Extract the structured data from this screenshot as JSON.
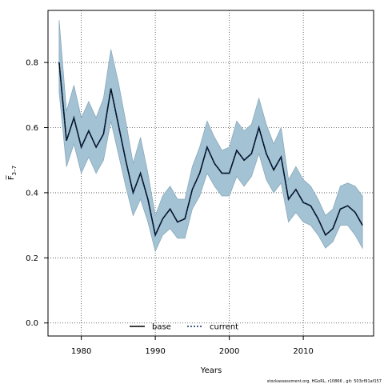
{
  "chart_data": {
    "type": "area",
    "xlabel": "Years",
    "ylabel": "F̅",
    "ylabel_sub": "3–7",
    "xlim": [
      1975.5,
      2019.5
    ],
    "ylim": [
      -0.04,
      0.96
    ],
    "x_ticks": [
      1980,
      1990,
      2000,
      2010
    ],
    "y_ticks": [
      0.0,
      0.2,
      0.4,
      0.6,
      0.8
    ],
    "grid": true,
    "legend_position": "bottom-center",
    "legend": [
      {
        "name": "base",
        "style": "solid",
        "color": "#000000"
      },
      {
        "name": "current",
        "style": "dashed",
        "color": "#0b2a5c"
      }
    ],
    "band_color": "#a3c2d4",
    "x": [
      1977,
      1978,
      1979,
      1980,
      1981,
      1982,
      1983,
      1984,
      1985,
      1986,
      1987,
      1988,
      1989,
      1990,
      1991,
      1992,
      1993,
      1994,
      1995,
      1996,
      1997,
      1998,
      1999,
      2000,
      2001,
      2002,
      2003,
      2004,
      2005,
      2006,
      2007,
      2008,
      2009,
      2010,
      2011,
      2012,
      2013,
      2014,
      2015,
      2016,
      2017,
      2018
    ],
    "series": [
      {
        "name": "base",
        "values": [
          0.8,
          0.56,
          0.63,
          0.54,
          0.59,
          0.54,
          0.58,
          0.72,
          0.61,
          0.5,
          0.4,
          0.46,
          0.38,
          0.27,
          0.32,
          0.35,
          0.31,
          0.32,
          0.41,
          0.46,
          0.54,
          0.49,
          0.46,
          0.46,
          0.53,
          0.5,
          0.52,
          0.6,
          0.52,
          0.47,
          0.51,
          0.38,
          0.41,
          0.37,
          0.36,
          0.32,
          0.27,
          0.29,
          0.35,
          0.36,
          0.34,
          0.3
        ]
      },
      {
        "name": "current",
        "values": [
          0.8,
          0.56,
          0.63,
          0.54,
          0.59,
          0.54,
          0.58,
          0.72,
          0.61,
          0.5,
          0.4,
          0.46,
          0.38,
          0.27,
          0.32,
          0.35,
          0.31,
          0.32,
          0.41,
          0.46,
          0.54,
          0.49,
          0.46,
          0.46,
          0.53,
          0.5,
          0.52,
          0.6,
          0.52,
          0.47,
          0.51,
          0.38,
          0.41,
          0.37,
          0.36,
          0.32,
          0.27,
          0.29,
          0.35,
          0.36,
          0.34,
          0.3
        ]
      }
    ],
    "band_upper": [
      0.93,
      0.65,
      0.73,
      0.63,
      0.68,
      0.63,
      0.69,
      0.84,
      0.74,
      0.62,
      0.49,
      0.57,
      0.46,
      0.33,
      0.39,
      0.42,
      0.38,
      0.38,
      0.48,
      0.54,
      0.62,
      0.57,
      0.53,
      0.54,
      0.62,
      0.59,
      0.61,
      0.69,
      0.61,
      0.55,
      0.6,
      0.44,
      0.48,
      0.44,
      0.42,
      0.38,
      0.33,
      0.35,
      0.42,
      0.43,
      0.42,
      0.39
    ],
    "band_lower": [
      0.71,
      0.48,
      0.55,
      0.46,
      0.51,
      0.46,
      0.5,
      0.62,
      0.52,
      0.42,
      0.33,
      0.38,
      0.31,
      0.22,
      0.27,
      0.29,
      0.26,
      0.26,
      0.35,
      0.39,
      0.46,
      0.42,
      0.39,
      0.39,
      0.45,
      0.42,
      0.45,
      0.52,
      0.44,
      0.4,
      0.43,
      0.31,
      0.34,
      0.31,
      0.3,
      0.27,
      0.23,
      0.25,
      0.3,
      0.3,
      0.27,
      0.23
    ]
  },
  "footnote": "stockassessment.org, HGoRL, r10866 , git: 503cf91af157"
}
